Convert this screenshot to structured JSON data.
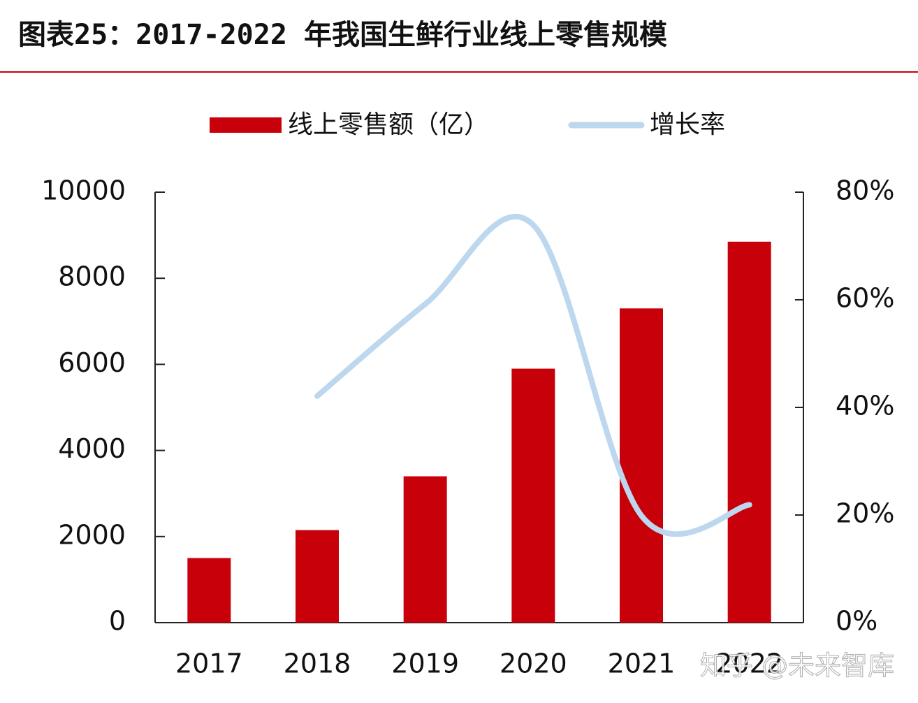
{
  "chart_data": {
    "type": "bar-line",
    "title": "图表25：2017-2022 年我国生鲜行业线上零售规模",
    "categories": [
      "2017",
      "2018",
      "2019",
      "2020",
      "2021",
      "2022"
    ],
    "series": [
      {
        "name": "线上零售额（亿）",
        "type": "bar",
        "color": "#c8000a",
        "values": [
          1500,
          2150,
          3400,
          5900,
          7300,
          8850
        ]
      },
      {
        "name": "增长率",
        "type": "line",
        "axis": "y2",
        "color": "#bdd7ee",
        "values": [
          null,
          42.1,
          59.2,
          73.9,
          19.9,
          21.9
        ]
      }
    ],
    "ylim": [
      0,
      10000
    ],
    "yticks": [
      0,
      2000,
      4000,
      6000,
      8000,
      10000
    ],
    "y2lim": [
      0,
      80
    ],
    "y2ticks": [
      {
        "value": 0,
        "label": "0%"
      },
      {
        "value": 20,
        "label": "20%"
      },
      {
        "value": 40,
        "label": "40%"
      },
      {
        "value": 60,
        "label": "60%"
      },
      {
        "value": 80,
        "label": "80%"
      }
    ],
    "legend": "top",
    "watermark": "知乎 @未来智库"
  }
}
